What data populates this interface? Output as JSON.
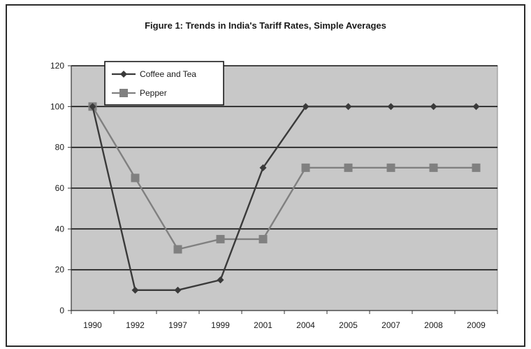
{
  "chart_data": {
    "type": "line",
    "title": "Figure 1: Trends in India's Tariff Rates, Simple Averages",
    "xlabel": "",
    "ylabel": "",
    "categories": [
      "1990",
      "1992",
      "1997",
      "1999",
      "2001",
      "2004",
      "2005",
      "2007",
      "2008",
      "2009"
    ],
    "ylim": [
      0,
      120
    ],
    "yticks": [
      0,
      20,
      40,
      60,
      80,
      100,
      120
    ],
    "grid": true,
    "legend_position": "top-left",
    "background_color": "#c8c8c8",
    "series": [
      {
        "name": "Coffee and Tea",
        "values": [
          100,
          10,
          10,
          15,
          70,
          100,
          100,
          100,
          100,
          100
        ],
        "color": "#3a3a3a",
        "marker": "diamond"
      },
      {
        "name": "Pepper",
        "values": [
          100,
          65,
          30,
          35,
          35,
          70,
          70,
          70,
          70,
          70
        ],
        "color": "#808080",
        "marker": "square"
      }
    ]
  }
}
